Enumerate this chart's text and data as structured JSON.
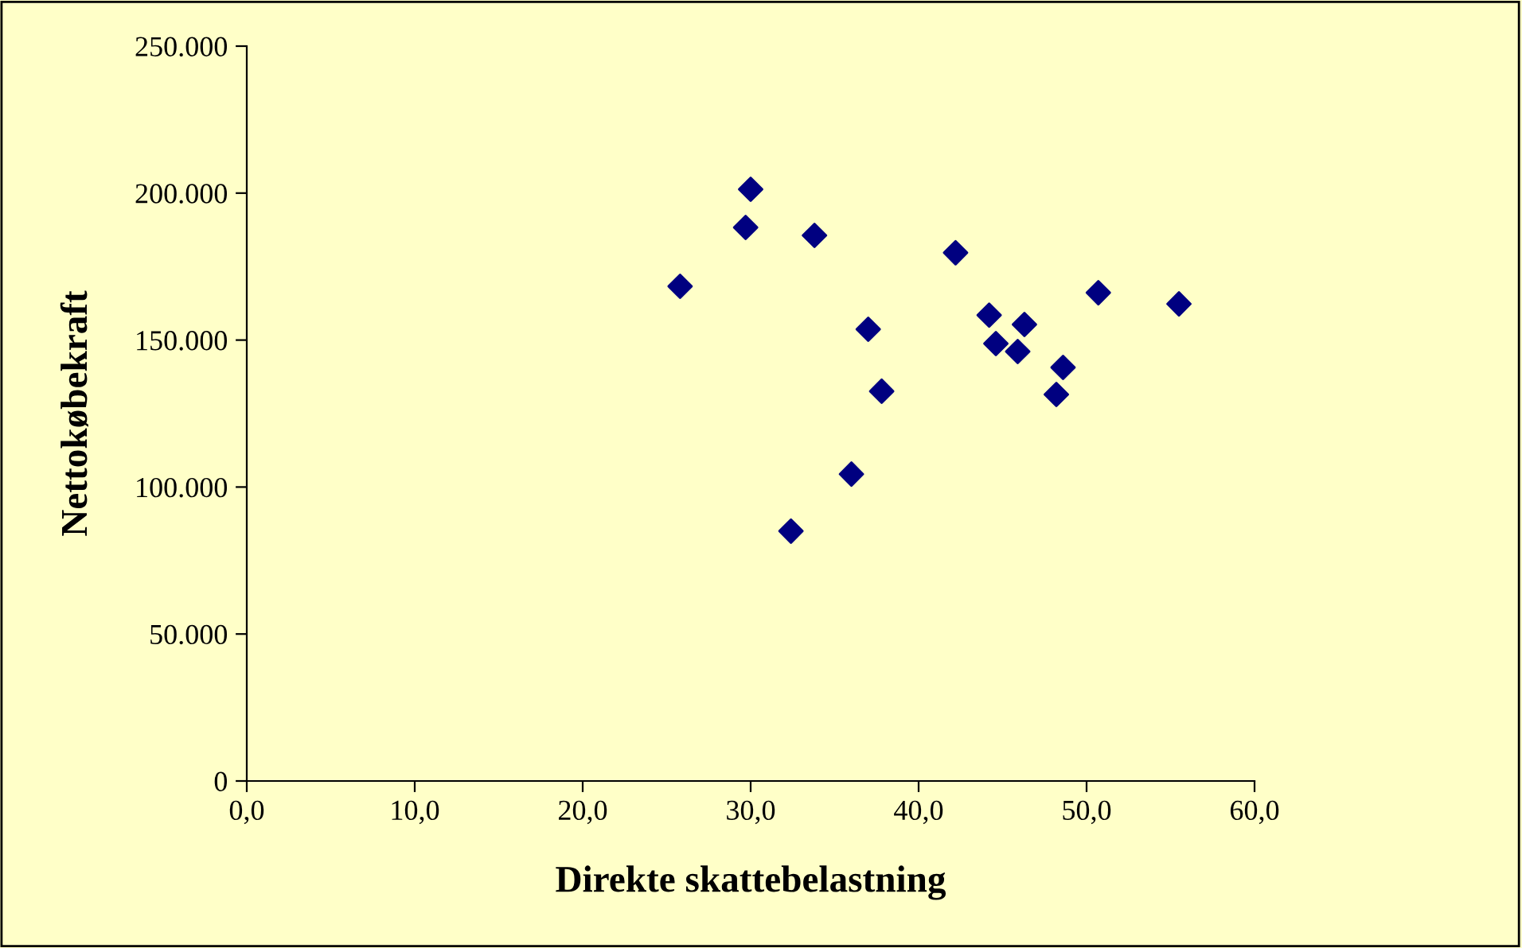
{
  "chart_data": {
    "type": "scatter",
    "xlabel": "Direkte skattebelastning",
    "ylabel": "Nettokøbekraft",
    "x": [
      25.8,
      29.7,
      30.0,
      32.4,
      33.8,
      36.0,
      37.0,
      37.8,
      42.2,
      44.2,
      44.6,
      45.9,
      46.3,
      48.2,
      48.6,
      50.7,
      55.5
    ],
    "values": [
      168300,
      188300,
      201300,
      85000,
      185600,
      104400,
      153700,
      132600,
      179700,
      158500,
      148800,
      146100,
      155300,
      131500,
      140700,
      166100,
      162300
    ],
    "color": "#000080",
    "marker": "diamond",
    "xlim": [
      0,
      60
    ],
    "ylim": [
      0,
      250000
    ],
    "xticks": [
      {
        "value": 0,
        "label": "0,0"
      },
      {
        "value": 10,
        "label": "10,0"
      },
      {
        "value": 20,
        "label": "20,0"
      },
      {
        "value": 30,
        "label": "30,0"
      },
      {
        "value": 40,
        "label": "40,0"
      },
      {
        "value": 50,
        "label": "50,0"
      },
      {
        "value": 60,
        "label": "60,0"
      }
    ],
    "yticks": [
      0,
      {
        "value": 50000,
        "label": "50.000"
      },
      {
        "value": 100000,
        "label": "100.000"
      },
      {
        "value": 150000,
        "label": "150.000"
      },
      {
        "value": 200000,
        "label": "200.000"
      },
      {
        "value": 250000,
        "label": "250.000"
      }
    ],
    "grid": false,
    "legend": false
  }
}
